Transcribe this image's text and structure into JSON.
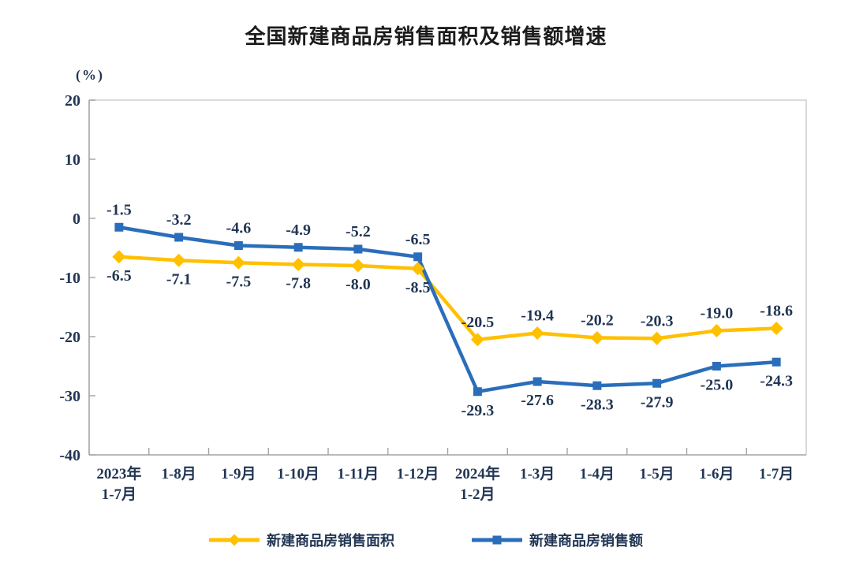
{
  "chart_data": {
    "type": "line",
    "title": "全国新建商品房销售面积及销售额增速",
    "unit_label": "(%)",
    "categories": [
      [
        "2023年",
        "1-7月"
      ],
      [
        "1-8月"
      ],
      [
        "1-9月"
      ],
      [
        "1-10月"
      ],
      [
        "1-11月"
      ],
      [
        "1-12月"
      ],
      [
        "2024年",
        "1-2月"
      ],
      [
        "1-3月"
      ],
      [
        "1-4月"
      ],
      [
        "1-5月"
      ],
      [
        "1-6月"
      ],
      [
        "1-7月"
      ]
    ],
    "y_axis": {
      "ticks": [
        "20",
        "10",
        "0",
        "-10",
        "-20",
        "-30",
        "-40"
      ],
      "tick_values": [
        20,
        10,
        0,
        -10,
        -20,
        -30,
        -40
      ],
      "min": -40,
      "max": 20,
      "grid": false
    },
    "series": [
      {
        "key": "sales-area",
        "name": "新建商品房销售面积",
        "color": "#FFC000",
        "marker": "diamond",
        "values": [
          -6.5,
          -7.1,
          -7.5,
          -7.8,
          -8.0,
          -8.5,
          -20.5,
          -19.4,
          -20.2,
          -20.3,
          -19.0,
          -18.6
        ],
        "labels": [
          "-6.5",
          "-7.1",
          "-7.5",
          "-7.8",
          "-8.0",
          "-8.5",
          "-20.5",
          "-19.4",
          "-20.2",
          "-20.3",
          "-19.0",
          "-18.6"
        ],
        "label_side": [
          "below",
          "below",
          "below",
          "below",
          "below",
          "below",
          "above",
          "above",
          "above",
          "above",
          "above",
          "above"
        ]
      },
      {
        "key": "sales-amount",
        "name": "新建商品房销售额",
        "color": "#2A6EBB",
        "marker": "square",
        "values": [
          -1.5,
          -3.2,
          -4.6,
          -4.9,
          -5.2,
          -6.5,
          -29.3,
          -27.6,
          -28.3,
          -27.9,
          -25.0,
          -24.3
        ],
        "labels": [
          "-1.5",
          "-3.2",
          "-4.6",
          "-4.9",
          "-5.2",
          "-6.5",
          "-29.3",
          "-27.6",
          "-28.3",
          "-27.9",
          "-25.0",
          "-24.3"
        ],
        "label_side": [
          "above",
          "above",
          "above",
          "above",
          "above",
          "above",
          "below",
          "below",
          "below",
          "below",
          "below",
          "below"
        ]
      }
    ],
    "legend_position": "bottom",
    "text_color": "#223654",
    "axis_color": "#a3a3a3",
    "frame_color": "#d6d6d6"
  }
}
